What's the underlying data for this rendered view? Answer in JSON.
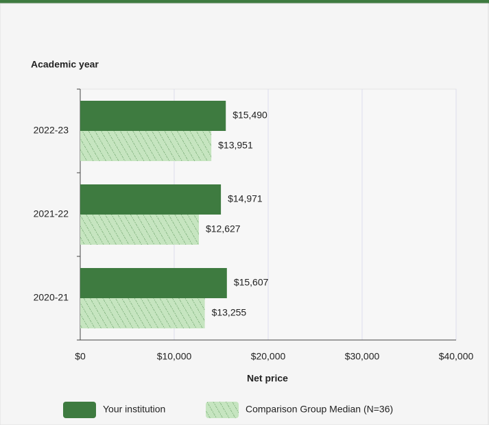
{
  "chart_data": {
    "type": "hbar",
    "y_axis_title": "Academic year",
    "x_axis_label": "Net price",
    "categories": [
      "2022-23",
      "2021-22",
      "2020-21"
    ],
    "series": [
      {
        "name": "Your institution",
        "color": "#3e7b40",
        "hatch": false,
        "values": [
          15490,
          14971,
          15607
        ],
        "value_labels": [
          "$15,490",
          "$14,971",
          "$15,607"
        ]
      },
      {
        "name": "Comparison Group Median (N=36)",
        "color": "#c6e5c0",
        "hatch": true,
        "values": [
          13951,
          12627,
          13255
        ],
        "value_labels": [
          "$13,951",
          "$12,627",
          "$13,255"
        ]
      }
    ],
    "xlim": [
      0,
      40000
    ],
    "xticks": [
      {
        "value": 0,
        "label": "$0"
      },
      {
        "value": 10000,
        "label": "$10,000"
      },
      {
        "value": 20000,
        "label": "$20,000"
      },
      {
        "value": 30000,
        "label": "$30,000"
      },
      {
        "value": 40000,
        "label": "$40,000"
      }
    ],
    "grid": true,
    "legend": "bottom"
  }
}
